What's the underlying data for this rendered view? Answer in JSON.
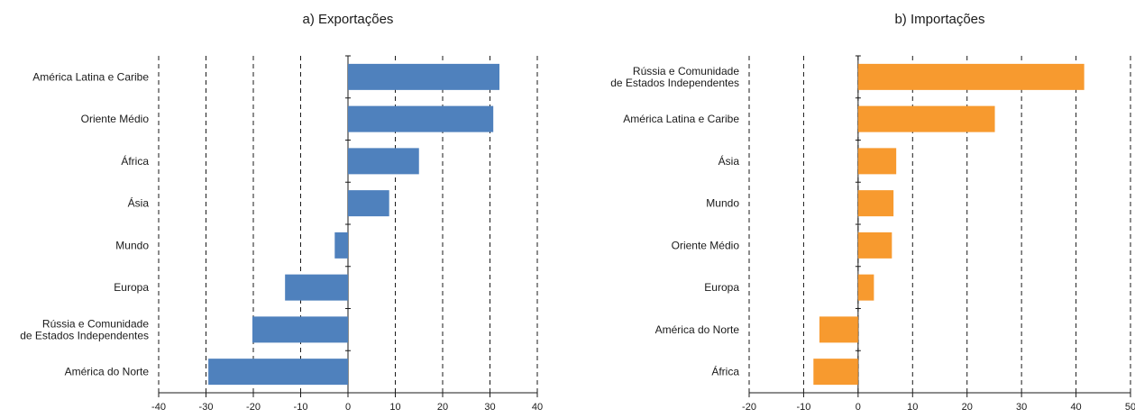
{
  "chart_data": [
    {
      "type": "bar",
      "orientation": "horizontal",
      "title": "a) Exportações",
      "categories": [
        "América Latina e Caribe",
        "Oriente Médio",
        "África",
        "Ásia",
        "Mundo",
        "Europa",
        "Rússia e Comunidade\nde Estados Independentes",
        "América do Norte"
      ],
      "values": [
        32,
        30.7,
        15,
        8.7,
        -2.8,
        -13.3,
        -20.2,
        -29.5
      ],
      "xlim": [
        -40,
        40
      ],
      "xticks": [
        -40,
        -30,
        -20,
        -10,
        0,
        10,
        20,
        30,
        40
      ],
      "grid": "vertical dashed",
      "color": "#4f81bd"
    },
    {
      "type": "bar",
      "orientation": "horizontal",
      "title": "b) Importações",
      "categories": [
        "Rússia e Comunidade\nde Estados Independentes",
        "América Latina e Caribe",
        "Ásia",
        "Mundo",
        "Oriente Médio",
        "Europa",
        "América do Norte",
        "África"
      ],
      "values": [
        41.5,
        25.1,
        7,
        6.5,
        6.2,
        2.9,
        -7.1,
        -8.2
      ],
      "xlim": [
        -20,
        50
      ],
      "xticks": [
        -20,
        -10,
        0,
        10,
        20,
        30,
        40,
        50
      ],
      "grid": "vertical dashed",
      "color": "#f79a2f"
    }
  ]
}
